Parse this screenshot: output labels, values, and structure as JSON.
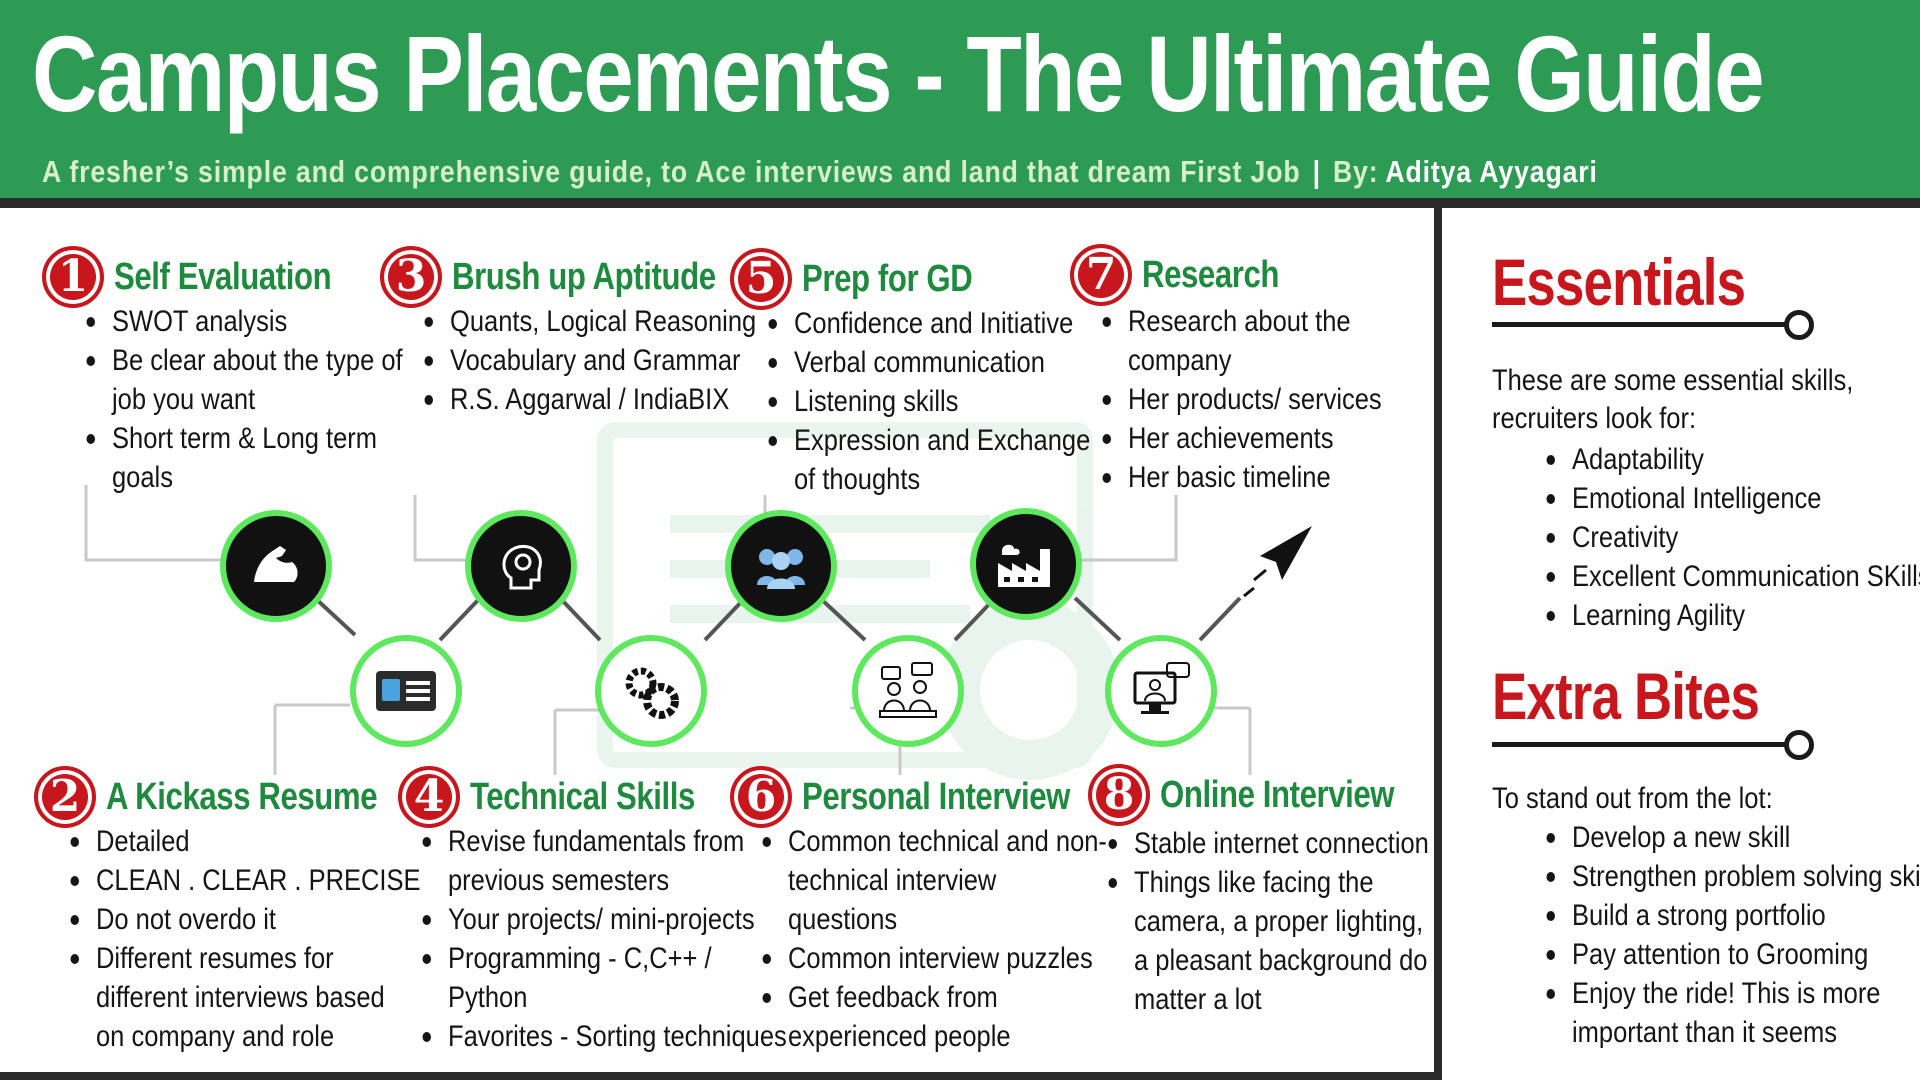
{
  "header": {
    "title": "Campus Placements - The Ultimate Guide",
    "subtitle": "A fresher’s simple and comprehensive guide, to Ace interviews and land that dream First Job",
    "separator": "|",
    "by_label": "By:",
    "author": "Aditya Ayyagari"
  },
  "steps": [
    {
      "number": "1",
      "title": "Self Evaluation",
      "items": [
        "SWOT analysis",
        "Be clear about the type of",
        "job you want",
        "Short term & Long term",
        "goals"
      ]
    },
    {
      "number": "2",
      "title": "A Kickass Resume",
      "items": [
        "Detailed",
        "CLEAN . CLEAR . PRECISE",
        "Do not overdo it",
        "Different resumes for",
        "different interviews based",
        "on company and role"
      ]
    },
    {
      "number": "3",
      "title": "Brush up Aptitude",
      "items": [
        "Quants, Logical Reasoning",
        "Vocabulary and Grammar",
        "R.S. Aggarwal / IndiaBIX"
      ]
    },
    {
      "number": "4",
      "title": "Technical Skills",
      "items": [
        "Revise fundamentals from",
        "previous semesters",
        "Your projects/ mini-projects",
        "Programming - C,C++ /",
        "Python",
        "Favorites - Sorting techniques"
      ]
    },
    {
      "number": "5",
      "title": "Prep for GD",
      "items": [
        "Confidence and Initiative",
        "Verbal communication",
        "Listening skills",
        "Expression and Exchange",
        "of thoughts"
      ]
    },
    {
      "number": "6",
      "title": "Personal Interview",
      "items": [
        "Common technical and non-",
        "technical interview",
        "questions",
        "Common interview puzzles",
        "Get feedback from",
        "experienced people"
      ]
    },
    {
      "number": "7",
      "title": "Research",
      "items": [
        "Research about the",
        "company",
        "Her products/ services",
        "Her achievements",
        "Her basic timeline"
      ]
    },
    {
      "number": "8",
      "title": "Online Interview",
      "items": [
        "Stable internet connection",
        "Things like facing the",
        "camera, a proper lighting,",
        "a pleasant background do",
        "matter a lot"
      ]
    }
  ],
  "essentials": {
    "title": "Essentials",
    "intro": [
      "These are some essential skills,",
      "recruiters look for:"
    ],
    "items": [
      "Adaptability",
      "Emotional Intelligence",
      "Creativity",
      "Excellent Communication SKills",
      "Learning Agility"
    ]
  },
  "extra": {
    "title": "Extra Bites",
    "intro": [
      "To stand out from the lot:"
    ],
    "items": [
      "Develop a new skill",
      "Strengthen problem solving skills.",
      "Build a strong portfolio",
      "Pay attention to Grooming",
      "Enjoy the ride! This is more",
      "important than it seems"
    ]
  },
  "icons": [
    "muscle-arm-icon",
    "id-card-icon",
    "brain-gear-icon",
    "gears-icon",
    "group-icon",
    "interview-icon",
    "factory-icon",
    "video-call-icon",
    "paper-plane-icon"
  ],
  "colors": {
    "header_bg": "#2e9b55",
    "step_title": "#1e8a3e",
    "number_badge": "#c8161d",
    "node_ring": "#5ee85e"
  }
}
